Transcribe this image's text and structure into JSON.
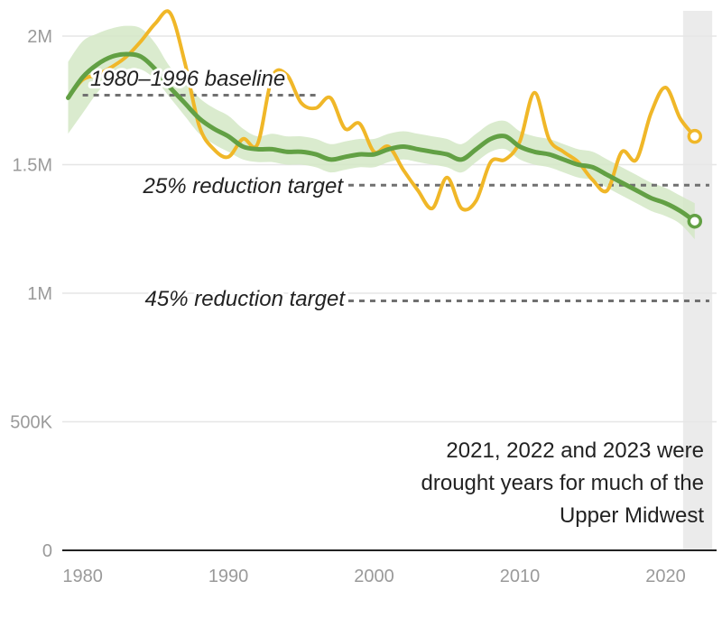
{
  "chart_data": {
    "type": "line",
    "title": "",
    "xlabel": "",
    "ylabel": "",
    "xlim": [
      1978,
      2024
    ],
    "ylim": [
      0,
      2100000
    ],
    "x_ticks": [
      1980,
      1990,
      2000,
      2010,
      2020
    ],
    "y_ticks": [
      {
        "value": 0,
        "label": "0"
      },
      {
        "value": 500000,
        "label": "500K"
      },
      {
        "value": 1000000,
        "label": "1M"
      },
      {
        "value": 1500000,
        "label": "1.5M"
      },
      {
        "value": 2000000,
        "label": "2M"
      }
    ],
    "grid": "horizontal",
    "colors": {
      "annual": "#f0b728",
      "trend": "#62a044",
      "band": "#d3e8c6",
      "reference": "#707070",
      "shade": "#ebebeb",
      "grid": "#e6e6e6",
      "axis": "#222222"
    },
    "series": [
      {
        "key": "annual",
        "x": [
          1979,
          1980,
          1981,
          1982,
          1983,
          1984,
          1985,
          1986,
          1987,
          1988,
          1989,
          1990,
          1991,
          1992,
          1993,
          1994,
          1995,
          1996,
          1997,
          1998,
          1999,
          2000,
          2001,
          2002,
          2003,
          2004,
          2005,
          2006,
          2007,
          2008,
          2009,
          2010,
          2011,
          2012,
          2013,
          2014,
          2015,
          2016,
          2017,
          2018,
          2019,
          2020,
          2021,
          2022
        ],
        "values": [
          1760000,
          1830000,
          1850000,
          1880000,
          1920000,
          1980000,
          2050000,
          2090000,
          1900000,
          1650000,
          1560000,
          1530000,
          1600000,
          1580000,
          1840000,
          1850000,
          1740000,
          1720000,
          1760000,
          1640000,
          1660000,
          1550000,
          1570000,
          1480000,
          1400000,
          1330000,
          1450000,
          1330000,
          1360000,
          1510000,
          1520000,
          1590000,
          1780000,
          1600000,
          1550000,
          1510000,
          1440000,
          1400000,
          1550000,
          1520000,
          1700000,
          1800000,
          1680000,
          1610000
        ]
      },
      {
        "key": "trend",
        "x": [
          1979,
          1980,
          1981,
          1982,
          1983,
          1984,
          1985,
          1986,
          1987,
          1988,
          1989,
          1990,
          1991,
          1992,
          1993,
          1994,
          1995,
          1996,
          1997,
          1998,
          1999,
          2000,
          2001,
          2002,
          2003,
          2004,
          2005,
          2006,
          2007,
          2008,
          2009,
          2010,
          2011,
          2012,
          2013,
          2014,
          2015,
          2016,
          2017,
          2018,
          2019,
          2020,
          2021,
          2022
        ],
        "values": [
          1760000,
          1840000,
          1890000,
          1920000,
          1930000,
          1920000,
          1870000,
          1800000,
          1740000,
          1680000,
          1640000,
          1610000,
          1570000,
          1560000,
          1560000,
          1550000,
          1550000,
          1540000,
          1520000,
          1530000,
          1540000,
          1540000,
          1560000,
          1570000,
          1560000,
          1550000,
          1540000,
          1520000,
          1560000,
          1600000,
          1610000,
          1570000,
          1550000,
          1540000,
          1520000,
          1500000,
          1490000,
          1460000,
          1430000,
          1400000,
          1370000,
          1350000,
          1320000,
          1280000
        ],
        "band_low": [
          1620000,
          1700000,
          1780000,
          1840000,
          1870000,
          1870000,
          1830000,
          1760000,
          1690000,
          1620000,
          1580000,
          1550000,
          1520000,
          1510000,
          1510000,
          1500000,
          1500000,
          1490000,
          1470000,
          1480000,
          1490000,
          1490000,
          1510000,
          1520000,
          1510000,
          1500000,
          1490000,
          1470000,
          1510000,
          1550000,
          1560000,
          1520000,
          1500000,
          1490000,
          1470000,
          1450000,
          1440000,
          1410000,
          1380000,
          1350000,
          1320000,
          1300000,
          1270000,
          1210000
        ],
        "band_high": [
          1900000,
          1980000,
          2010000,
          2030000,
          2040000,
          2030000,
          1970000,
          1880000,
          1830000,
          1760000,
          1720000,
          1690000,
          1640000,
          1610000,
          1620000,
          1610000,
          1610000,
          1600000,
          1580000,
          1590000,
          1600000,
          1600000,
          1620000,
          1630000,
          1620000,
          1610000,
          1600000,
          1580000,
          1620000,
          1660000,
          1670000,
          1630000,
          1610000,
          1600000,
          1580000,
          1560000,
          1550000,
          1520000,
          1490000,
          1460000,
          1430000,
          1410000,
          1380000,
          1350000
        ]
      }
    ],
    "reference_lines": [
      {
        "label": "1980–1996 baseline",
        "value": 1770000,
        "x_start": 1980,
        "x_end": 1996
      },
      {
        "label": "25% reduction target",
        "value": 1420000,
        "x_start": 1996,
        "x_end": 2023
      },
      {
        "label": "45% reduction target",
        "value": 970000,
        "x_start": 1996,
        "x_end": 2023
      }
    ],
    "shaded_region": {
      "x_start": 2021.2,
      "x_end": 2023.2
    },
    "annotation": {
      "lines": [
        "2021, 2022 and 2023 were",
        "drought years for much of the",
        "Upper Midwest"
      ]
    }
  }
}
